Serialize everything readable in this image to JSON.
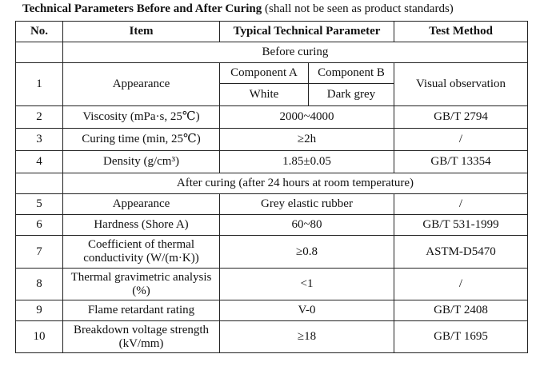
{
  "caption": {
    "bold_text": "Technical Parameters Before and After Curing",
    "normal_text": " (shall not be seen as product standards)"
  },
  "table": {
    "headers": [
      "No.",
      "Item",
      "Typical Technical Parameter",
      "Test Method"
    ],
    "section_before": "Before curing",
    "row1": {
      "no": "1",
      "item": "Appearance",
      "component_a": "Component A",
      "component_b": "Component B",
      "value_a": "White",
      "value_b": "Dark grey",
      "method": "Visual observation"
    },
    "rows_before": [
      {
        "no": "2",
        "item": "Viscosity (mPa·s, 25℃)",
        "param": "2000~4000",
        "method": "GB/T 2794"
      },
      {
        "no": "3",
        "item": "Curing time (min, 25℃)",
        "param": "≥2h",
        "method": "/"
      },
      {
        "no": "4",
        "item": "Density (g/cm³)",
        "param": "1.85±0.05",
        "method": "GB/T 13354"
      }
    ],
    "section_after": "After curing (after 24 hours at room temperature)",
    "rows_after": [
      {
        "no": "5",
        "item": "Appearance",
        "param": "Grey elastic rubber",
        "method": "/"
      },
      {
        "no": "6",
        "item": "Hardness (Shore A)",
        "param": "60~80",
        "method": "GB/T 531-1999"
      },
      {
        "no": "7",
        "item": "Coefficient of thermal conductivity (W/(m·K))",
        "param": "≥0.8",
        "method": "ASTM-D5470"
      },
      {
        "no": "8",
        "item": "Thermal gravimetric analysis (%)",
        "param": "<1",
        "method": "/"
      },
      {
        "no": "9",
        "item": "Flame retardant rating",
        "param": "V-0",
        "method": "GB/T 2408"
      },
      {
        "no": "10",
        "item": "Breakdown voltage strength (kV/mm)",
        "param": "≥18",
        "method": "GB/T 1695"
      }
    ]
  }
}
